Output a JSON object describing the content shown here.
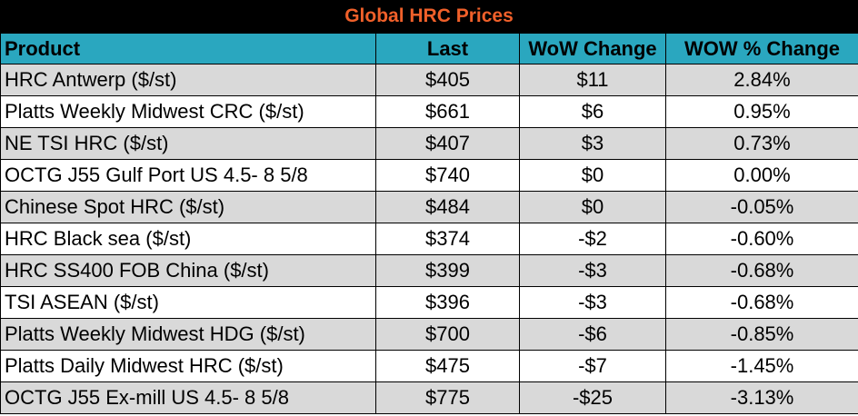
{
  "title": "Global HRC Prices",
  "colors": {
    "title_bg": "#000000",
    "title_text": "#f0602a",
    "header_bg": "#2aa7bf",
    "row_shade": "#d9d9d9",
    "row_plain": "#ffffff"
  },
  "columns": [
    "Product",
    "Last",
    "WoW Change",
    "WOW % Change"
  ],
  "rows": [
    {
      "product": "HRC Antwerp ($/st)",
      "last": "$405",
      "wow": "$11",
      "pct": "2.84%"
    },
    {
      "product": "Platts Weekly Midwest CRC ($/st)",
      "last": "$661",
      "wow": "$6",
      "pct": "0.95%"
    },
    {
      "product": "NE TSI HRC ($/st)",
      "last": "$407",
      "wow": "$3",
      "pct": "0.73%"
    },
    {
      "product": "OCTG J55 Gulf Port US 4.5- 8 5/8",
      "last": "$740",
      "wow": "$0",
      "pct": "0.00%"
    },
    {
      "product": "Chinese Spot HRC ($/st)",
      "last": "$484",
      "wow": "$0",
      "pct": "-0.05%"
    },
    {
      "product": "HRC Black sea ($/st)",
      "last": "$374",
      "wow": "-$2",
      "pct": "-0.60%"
    },
    {
      "product": "HRC SS400 FOB China ($/st)",
      "last": "$399",
      "wow": "-$3",
      "pct": "-0.68%"
    },
    {
      "product": "TSI ASEAN ($/st)",
      "last": "$396",
      "wow": "-$3",
      "pct": "-0.68%"
    },
    {
      "product": "Platts Weekly Midwest HDG ($/st)",
      "last": "$700",
      "wow": "-$6",
      "pct": "-0.85%"
    },
    {
      "product": "Platts Daily Midwest HRC ($/st)",
      "last": "$475",
      "wow": "-$7",
      "pct": "-1.45%"
    },
    {
      "product": "OCTG J55 Ex-mill US 4.5- 8 5/8",
      "last": "$775",
      "wow": "-$25",
      "pct": "-3.13%"
    }
  ]
}
